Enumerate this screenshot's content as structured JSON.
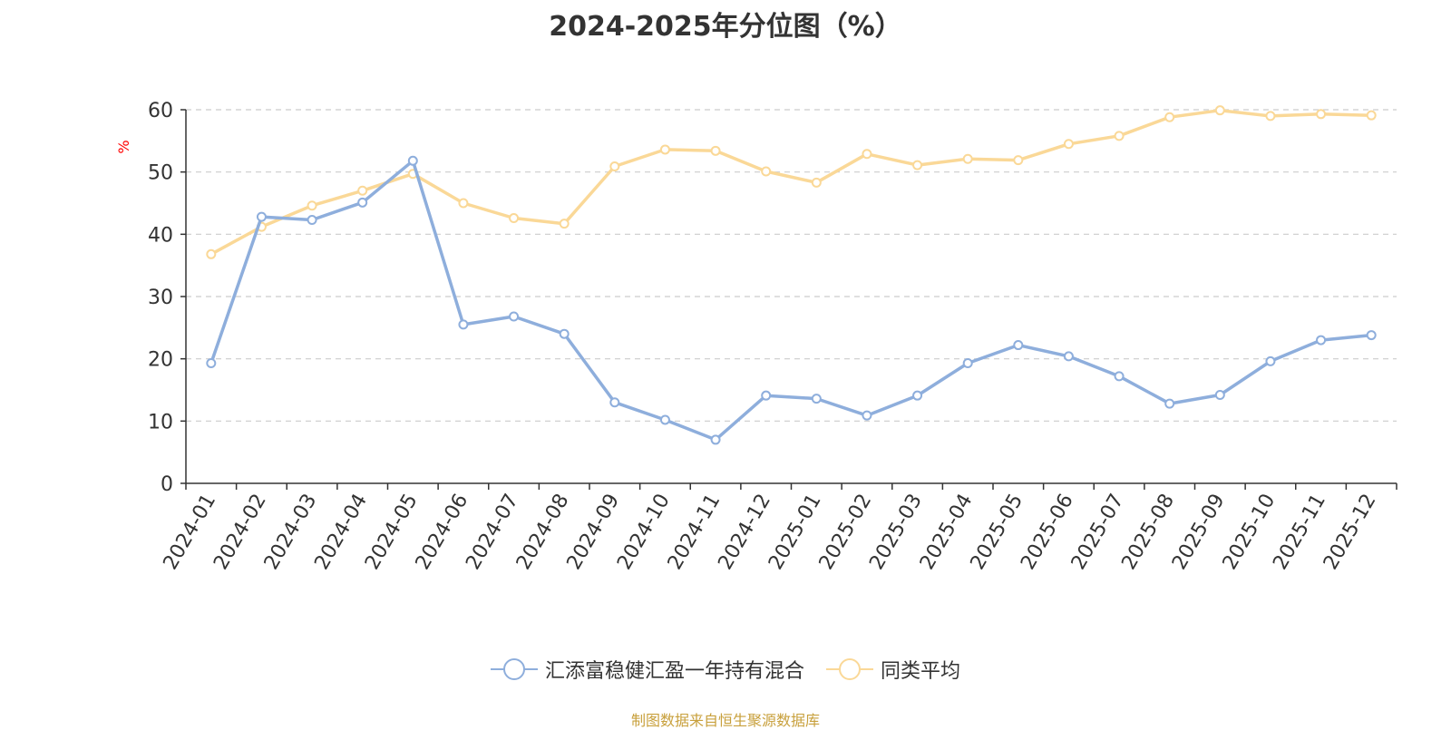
{
  "chart_data": {
    "type": "line",
    "title": "2024-2025年分位图（%）",
    "ylabel": "%",
    "ylim": [
      0,
      60
    ],
    "yticks": [
      0,
      10,
      20,
      30,
      40,
      50,
      60
    ],
    "grid": true,
    "legend_position": "bottom",
    "categories": [
      "2024-01",
      "2024-02",
      "2024-03",
      "2024-04",
      "2024-05",
      "2024-06",
      "2024-07",
      "2024-08",
      "2024-09",
      "2024-10",
      "2024-11",
      "2024-12",
      "2025-01",
      "2025-02",
      "2025-03",
      "2025-04",
      "2025-05",
      "2025-06",
      "2025-07",
      "2025-08",
      "2025-09",
      "2025-10",
      "2025-11",
      "2025-12"
    ],
    "series": [
      {
        "name": "汇添富稳健汇盈一年持有混合",
        "color": "#8eaedc",
        "values": [
          19.3,
          42.8,
          42.3,
          45.1,
          51.8,
          25.5,
          26.8,
          24.0,
          13.0,
          10.2,
          7.0,
          14.1,
          13.6,
          10.9,
          14.1,
          19.3,
          22.2,
          20.4,
          17.2,
          12.8,
          14.2,
          19.6,
          23.0,
          23.8
        ]
      },
      {
        "name": "同类平均",
        "color": "#fad897",
        "values": [
          36.8,
          41.2,
          44.6,
          47.0,
          49.7,
          45.0,
          42.6,
          41.7,
          50.9,
          53.6,
          53.4,
          50.1,
          48.3,
          52.9,
          51.1,
          52.1,
          51.9,
          54.5,
          55.8,
          58.8,
          59.9,
          59.0,
          59.3,
          59.1
        ]
      }
    ]
  },
  "source_note": "制图数据来自恒生聚源数据库",
  "colors": {
    "title": "#333333",
    "axis": "#333333",
    "grid": "#cccccc",
    "ylabel": "#ff0000",
    "source": "#c8a03c"
  }
}
